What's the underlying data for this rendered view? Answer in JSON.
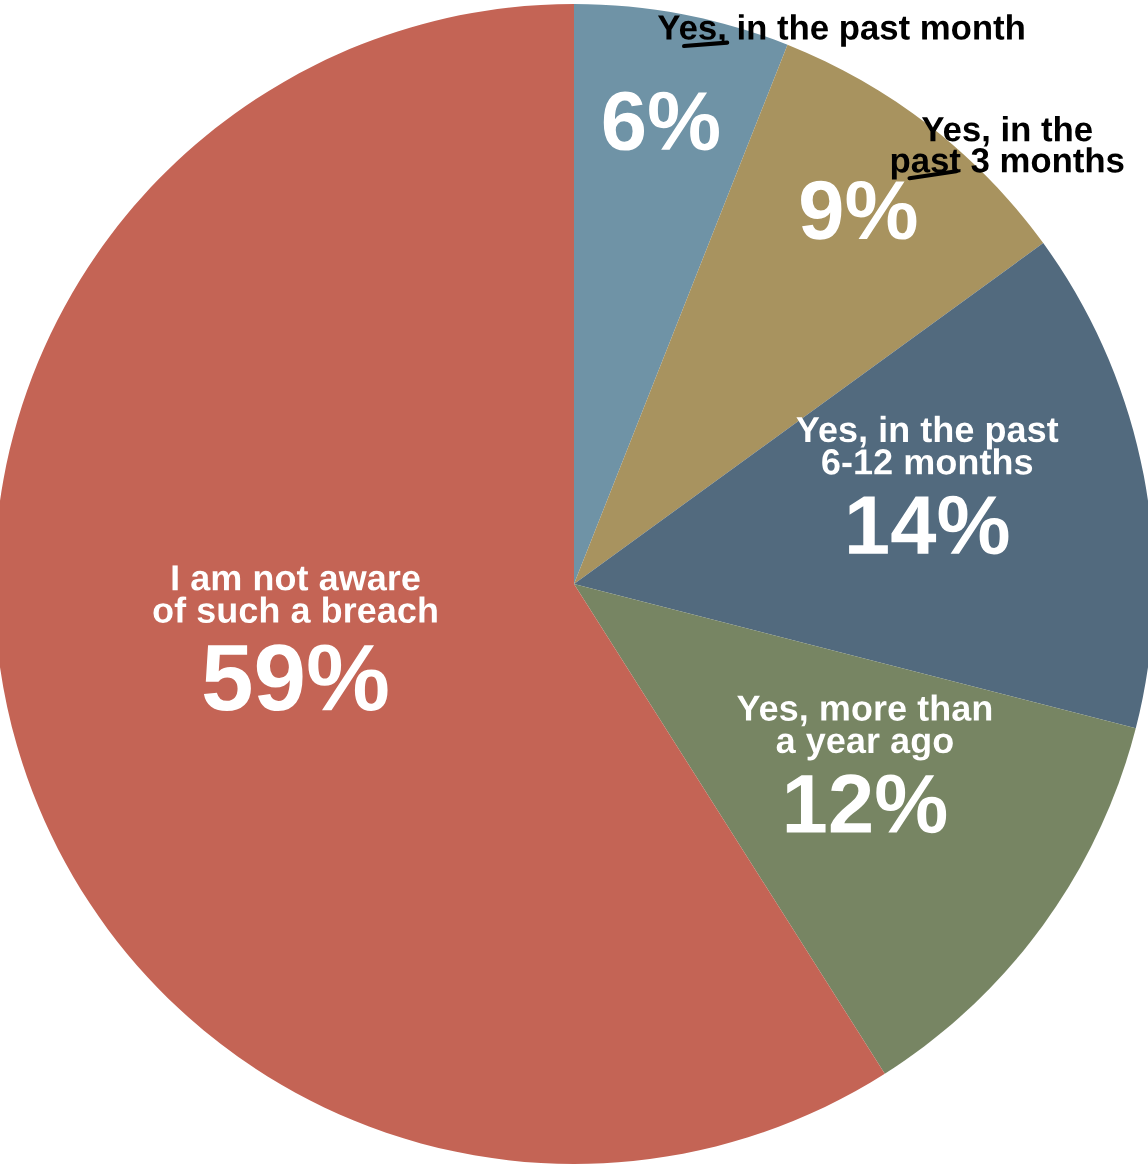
{
  "chart_data": {
    "type": "pie",
    "categories": [
      "Yes, in the past month",
      "Yes, in the past 3 months",
      "Yes, in the past 6-12 months",
      "Yes, more than a year ago",
      "I am not aware of such a breach"
    ],
    "values": [
      6,
      9,
      14,
      12,
      59
    ],
    "value_labels": [
      "6%",
      "9%",
      "14%",
      "12%",
      "59%"
    ],
    "colors": [
      "#6f93a6",
      "#a8935f",
      "#526a7e",
      "#778563",
      "#c46455"
    ]
  }
}
